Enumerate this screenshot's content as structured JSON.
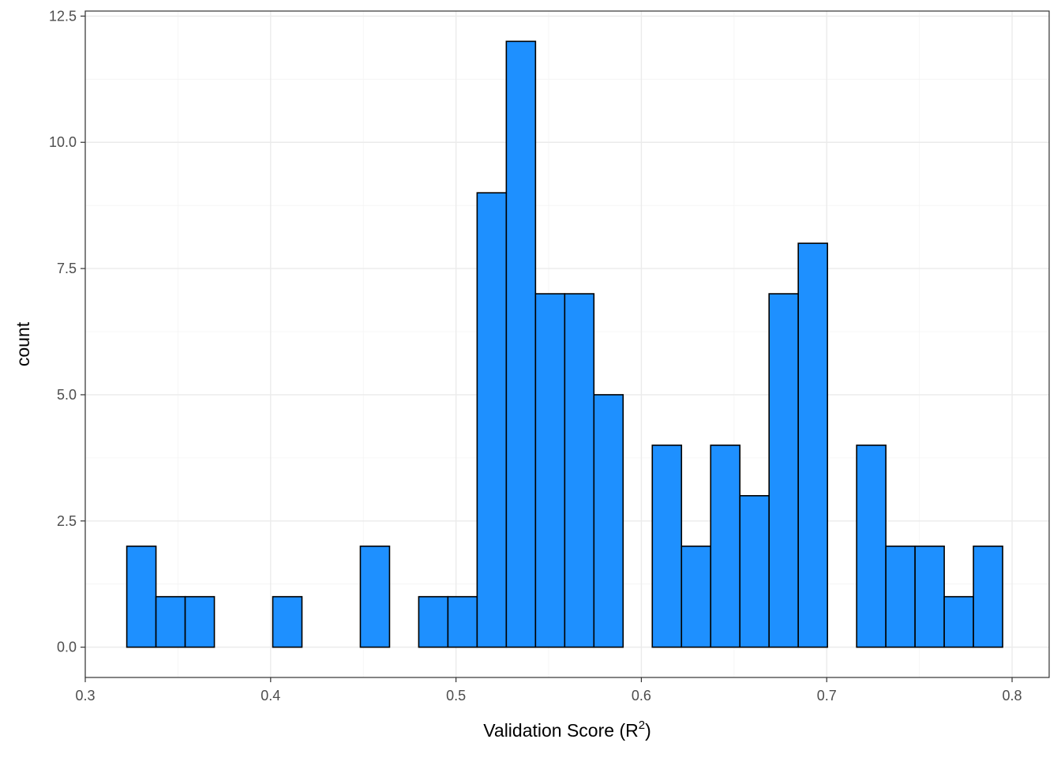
{
  "chart_data": {
    "type": "bar",
    "title": "",
    "xlabel": "Validation Score (R",
    "xlabel_superscript": "2",
    "xlabel_suffix": ")",
    "ylabel": "count",
    "xlim": [
      0.3,
      0.82
    ],
    "ylim": [
      -0.6,
      12.6
    ],
    "xticks": [
      0.3,
      0.4,
      0.5,
      0.6,
      0.7,
      0.8
    ],
    "xtick_labels": [
      "0.3",
      "0.4",
      "0.5",
      "0.6",
      "0.7",
      "0.8"
    ],
    "yticks": [
      0,
      2.5,
      5,
      7.5,
      10,
      12.5
    ],
    "ytick_labels": [
      "0.0",
      "2.5",
      "5.0",
      "7.5",
      "10.0",
      "12.5"
    ],
    "grid": true,
    "bin_start": 0.3224,
    "bin_width": 0.01575,
    "counts": [
      2,
      1,
      1,
      0,
      0,
      1,
      0,
      0,
      2,
      0,
      1,
      1,
      9,
      12,
      7,
      7,
      5,
      0,
      4,
      2,
      4,
      3,
      7,
      8,
      0,
      4,
      2,
      2,
      1,
      2
    ],
    "bar_fill": "#1e90ff",
    "bar_outline": "#000000"
  }
}
